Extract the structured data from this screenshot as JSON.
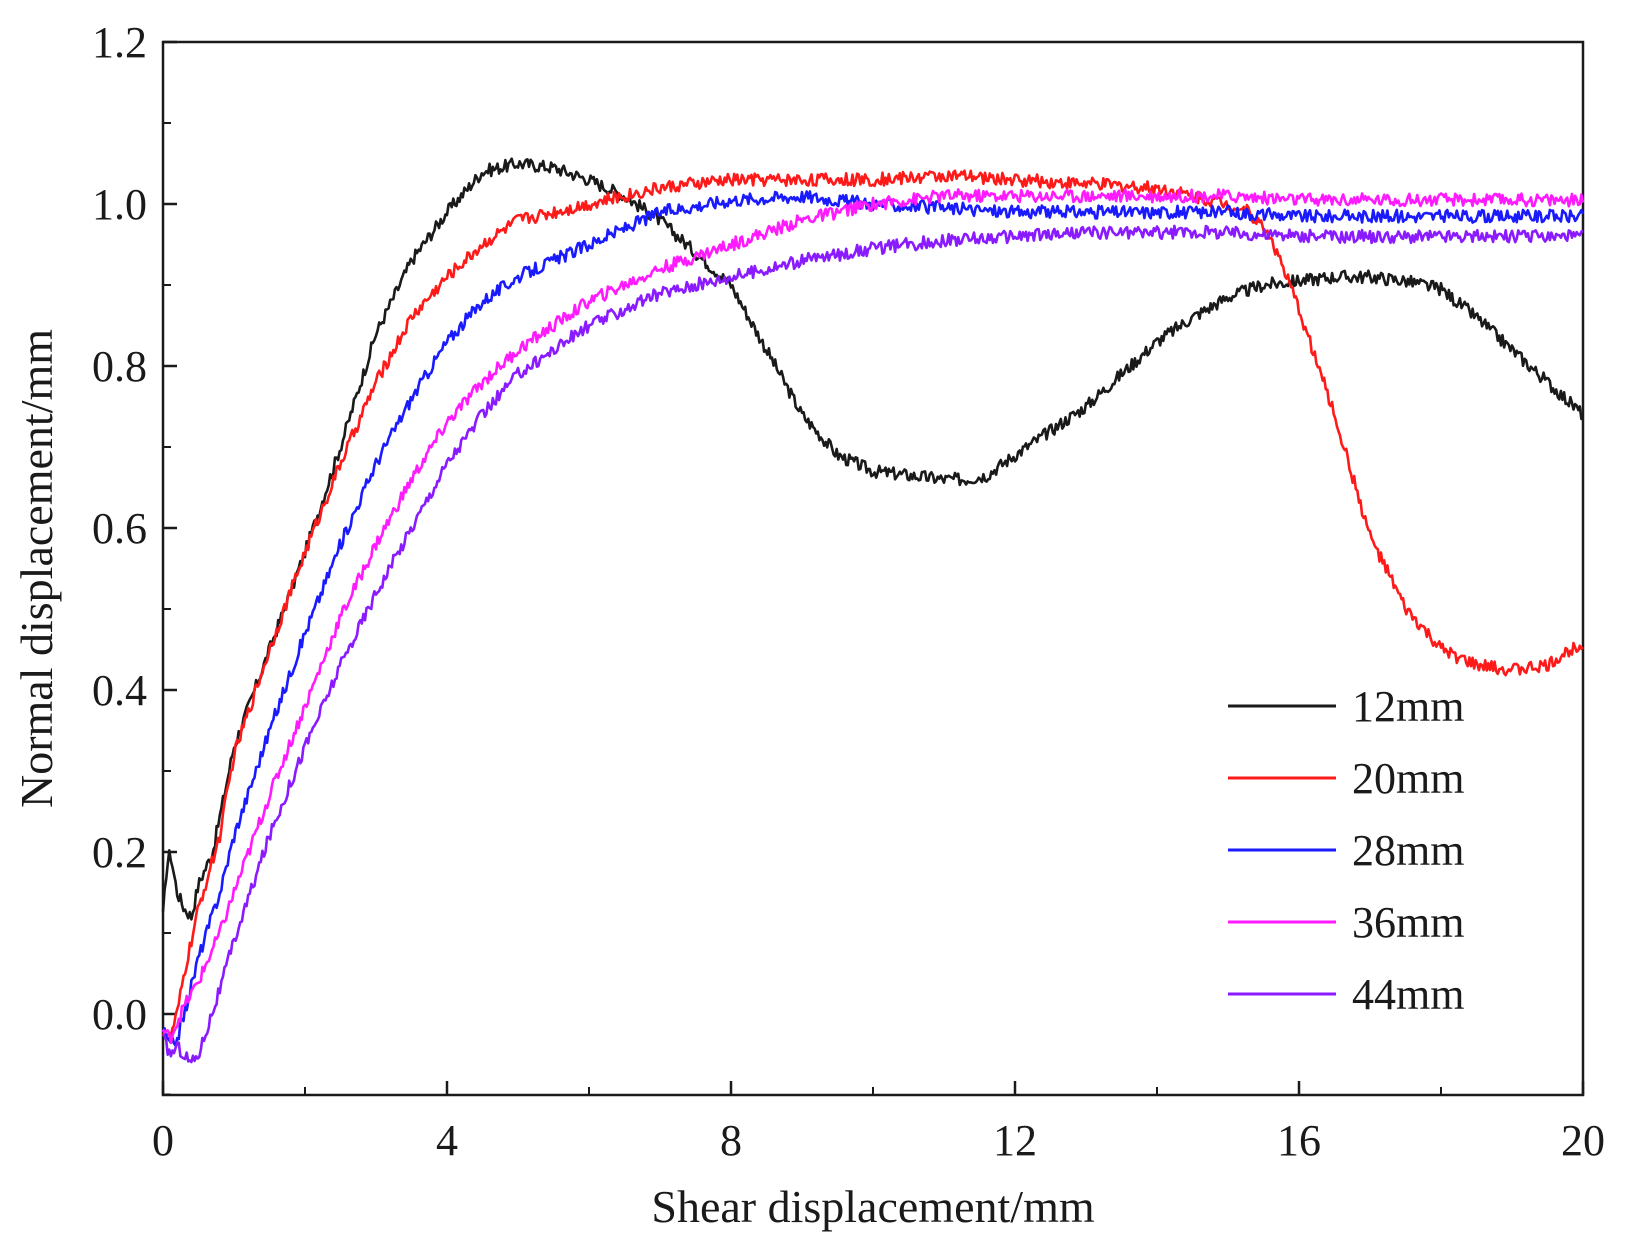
{
  "chart_data": {
    "type": "line",
    "title": "",
    "xlabel": "Shear displacement/mm",
    "ylabel": "Normal displacement/mm",
    "xlim": [
      0,
      20
    ],
    "ylim": [
      -0.1,
      1.2
    ],
    "xticks": [
      0,
      4,
      8,
      12,
      16,
      20
    ],
    "xtick_labels": [
      "0",
      "4",
      "8",
      "12",
      "16",
      "20"
    ],
    "yticks": [
      0.0,
      0.2,
      0.4,
      0.6,
      0.8,
      1.0,
      1.2
    ],
    "ytick_labels": [
      "0.0",
      "0.2",
      "0.4",
      "0.6",
      "0.8",
      "1.0",
      "1.2"
    ],
    "grid": false,
    "legend_position": "bottom-right",
    "series": [
      {
        "name": "12mm",
        "color": "#1a1a1a",
        "x": [
          0,
          0.05,
          0.1,
          0.2,
          0.3,
          0.4,
          0.5,
          0.7,
          1.0,
          1.5,
          2.0,
          2.5,
          3.0,
          3.5,
          4.0,
          4.5,
          5.0,
          5.5,
          6.0,
          6.5,
          7.0,
          7.5,
          8.0,
          8.5,
          9.0,
          9.5,
          10.0,
          10.5,
          11.0,
          11.3,
          11.6,
          12.0,
          12.5,
          13.0,
          13.5,
          14.0,
          14.5,
          15.0,
          15.5,
          16.0,
          16.5,
          17.0,
          17.5,
          18.0,
          18.5,
          19.0,
          19.5,
          20.0
        ],
        "y": [
          0.12,
          0.18,
          0.2,
          0.15,
          0.13,
          0.12,
          0.16,
          0.2,
          0.33,
          0.45,
          0.57,
          0.7,
          0.84,
          0.93,
          0.99,
          1.04,
          1.05,
          1.045,
          1.03,
          1.01,
          0.98,
          0.94,
          0.9,
          0.82,
          0.74,
          0.69,
          0.67,
          0.665,
          0.66,
          0.66,
          0.665,
          0.69,
          0.72,
          0.75,
          0.79,
          0.83,
          0.86,
          0.885,
          0.9,
          0.905,
          0.91,
          0.91,
          0.905,
          0.895,
          0.86,
          0.82,
          0.78,
          0.74
        ]
      },
      {
        "name": "20mm",
        "color": "#ff1a1a",
        "x": [
          0,
          0.1,
          0.2,
          0.3,
          0.5,
          0.8,
          1.0,
          1.5,
          2.0,
          2.5,
          3.0,
          3.5,
          4.0,
          4.5,
          5.0,
          6.0,
          7.0,
          8.0,
          9.0,
          10.0,
          11.0,
          12.0,
          13.0,
          14.0,
          15.0,
          15.3,
          15.6,
          16.0,
          16.5,
          17.0,
          17.5,
          18.0,
          18.5,
          19.0,
          19.5,
          20.0
        ],
        "y": [
          -0.02,
          -0.03,
          0.0,
          0.05,
          0.13,
          0.22,
          0.32,
          0.45,
          0.57,
          0.68,
          0.78,
          0.86,
          0.91,
          0.95,
          0.98,
          1.0,
          1.02,
          1.03,
          1.03,
          1.03,
          1.035,
          1.03,
          1.025,
          1.02,
          1.0,
          0.99,
          0.96,
          0.87,
          0.74,
          0.59,
          0.5,
          0.45,
          0.43,
          0.425,
          0.43,
          0.46
        ]
      },
      {
        "name": "28mm",
        "color": "#1a1aff",
        "x": [
          0,
          0.1,
          0.2,
          0.3,
          0.5,
          0.8,
          1.0,
          1.5,
          2.0,
          2.5,
          3.0,
          3.5,
          4.0,
          4.5,
          5.0,
          6.0,
          7.0,
          8.0,
          9.0,
          10.0,
          11.0,
          12.0,
          13.0,
          14.0,
          15.0,
          16.0,
          17.0,
          18.0,
          19.0,
          20.0
        ],
        "y": [
          -0.02,
          -0.04,
          -0.03,
          0.0,
          0.07,
          0.15,
          0.22,
          0.35,
          0.47,
          0.58,
          0.68,
          0.76,
          0.83,
          0.88,
          0.91,
          0.95,
          0.99,
          1.005,
          1.01,
          1.0,
          0.995,
          0.99,
          0.99,
          0.99,
          0.99,
          0.985,
          0.985,
          0.985,
          0.985,
          0.985
        ]
      },
      {
        "name": "36mm",
        "color": "#ff1aff",
        "x": [
          0,
          0.1,
          0.2,
          0.3,
          0.5,
          0.8,
          1.0,
          1.5,
          2.0,
          2.5,
          3.0,
          3.5,
          4.0,
          4.5,
          5.0,
          6.0,
          7.0,
          8.0,
          9.0,
          10.0,
          11.0,
          12.0,
          13.0,
          14.0,
          15.0,
          16.0,
          17.0,
          18.0,
          19.0,
          20.0
        ],
        "y": [
          -0.02,
          -0.03,
          -0.01,
          0.01,
          0.04,
          0.1,
          0.15,
          0.27,
          0.38,
          0.49,
          0.58,
          0.66,
          0.73,
          0.78,
          0.82,
          0.88,
          0.92,
          0.95,
          0.98,
          1.0,
          1.01,
          1.01,
          1.01,
          1.01,
          1.01,
          1.005,
          1.005,
          1.005,
          1.005,
          1.005
        ]
      },
      {
        "name": "44mm",
        "color": "#8a1aff",
        "x": [
          0,
          0.1,
          0.2,
          0.3,
          0.4,
          0.5,
          0.8,
          1.0,
          1.5,
          2.0,
          2.5,
          3.0,
          3.5,
          4.0,
          4.5,
          5.0,
          6.0,
          7.0,
          8.0,
          9.0,
          10.0,
          11.0,
          12.0,
          13.0,
          14.0,
          15.0,
          16.0,
          17.0,
          18.0,
          19.0,
          20.0
        ],
        "y": [
          -0.03,
          -0.05,
          -0.04,
          -0.05,
          -0.06,
          -0.05,
          0.03,
          0.09,
          0.22,
          0.33,
          0.43,
          0.52,
          0.6,
          0.68,
          0.74,
          0.79,
          0.85,
          0.89,
          0.91,
          0.93,
          0.945,
          0.955,
          0.96,
          0.965,
          0.965,
          0.965,
          0.96,
          0.96,
          0.96,
          0.96,
          0.96
        ]
      }
    ]
  }
}
